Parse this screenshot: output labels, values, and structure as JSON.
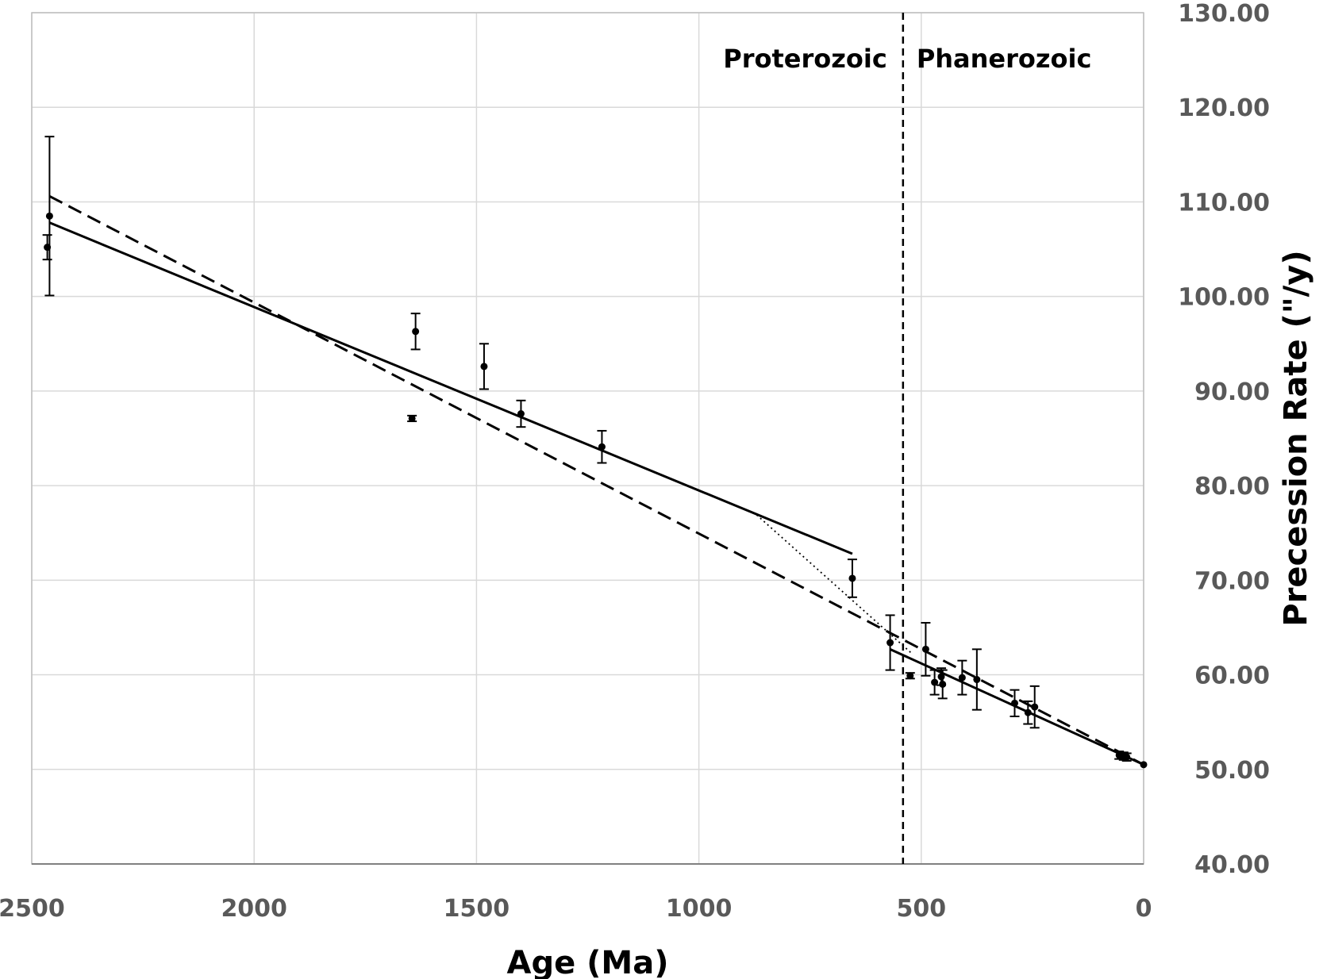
{
  "chart_data": {
    "type": "scatter",
    "xlabel": "Age (Ma)",
    "ylabel": "Precession Rate (\"/y)",
    "xlim": [
      2500,
      0
    ],
    "ylim": [
      40,
      130
    ],
    "x_reversed": true,
    "x_ticks": [
      2500,
      2000,
      1500,
      1000,
      500,
      0
    ],
    "x_tick_labels": [
      "2500",
      "2000",
      "1500",
      "1000",
      "500",
      "0"
    ],
    "y_ticks": [
      40,
      50,
      60,
      70,
      80,
      90,
      100,
      110,
      120,
      130
    ],
    "y_tick_labels": [
      "40.00",
      "50.00",
      "60.00",
      "70.00",
      "80.00",
      "90.00",
      "100.00",
      "110.00",
      "120.00",
      "130.00"
    ],
    "y_axis_side": "right",
    "grid": true,
    "points": [
      {
        "x": 2465,
        "y": 105.2,
        "err": 1.3
      },
      {
        "x": 2460,
        "y": 108.5,
        "err": 8.4
      },
      {
        "x": 1637,
        "y": 96.3,
        "err": 1.9
      },
      {
        "x": 1645,
        "y": 87.1,
        "err": 0.3
      },
      {
        "x": 1483,
        "y": 92.6,
        "err": 2.4
      },
      {
        "x": 1400,
        "y": 87.6,
        "err": 1.4
      },
      {
        "x": 1218,
        "y": 84.1,
        "err": 1.7
      },
      {
        "x": 655,
        "y": 70.2,
        "err": 2.0
      },
      {
        "x": 570,
        "y": 63.4,
        "err": 2.9
      },
      {
        "x": 525,
        "y": 59.9,
        "err": 0.3
      },
      {
        "x": 490,
        "y": 62.7,
        "err": 2.8
      },
      {
        "x": 470,
        "y": 59.2,
        "err": 1.3
      },
      {
        "x": 455,
        "y": 59.8,
        "err": 0.9
      },
      {
        "x": 452,
        "y": 59.0,
        "err": 1.5
      },
      {
        "x": 408,
        "y": 59.7,
        "err": 1.8
      },
      {
        "x": 375,
        "y": 59.5,
        "err": 3.2
      },
      {
        "x": 290,
        "y": 57.0,
        "err": 1.4
      },
      {
        "x": 260,
        "y": 56.0,
        "err": 1.2
      },
      {
        "x": 245,
        "y": 56.6,
        "err": 2.2
      },
      {
        "x": 55,
        "y": 51.5,
        "err": 0.4
      },
      {
        "x": 45,
        "y": 51.4,
        "err": 0.4
      },
      {
        "x": 38,
        "y": 51.3,
        "err": 0.4
      },
      {
        "x": 0,
        "y": 50.5,
        "err": 0
      }
    ],
    "fit_lines": [
      {
        "style": "solid",
        "x": [
          2460,
          655
        ],
        "y": [
          107.8,
          72.8
        ]
      },
      {
        "style": "solid",
        "x": [
          570,
          0
        ],
        "y": [
          62.7,
          50.5
        ]
      },
      {
        "style": "dashed",
        "x": [
          2460,
          0
        ],
        "y": [
          110.6,
          50.5
        ]
      },
      {
        "style": "dotted",
        "x": [
          870,
          520
        ],
        "y": [
          76.9,
          62.2
        ]
      }
    ],
    "vertical_marker": {
      "x": 541,
      "style": "dashed"
    },
    "annotations": [
      {
        "text": "Proterozoic",
        "side": "left"
      },
      {
        "text": "Phanerozoic",
        "side": "right"
      }
    ]
  }
}
